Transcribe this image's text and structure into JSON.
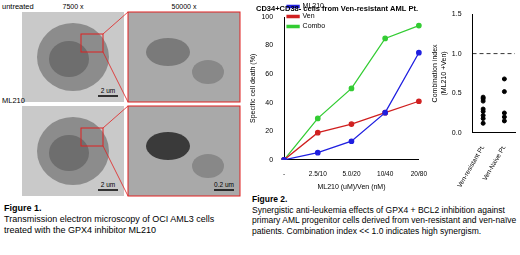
{
  "figure1": {
    "rows": [
      {
        "label": "untreated",
        "panels": [
          {
            "magnification": "7500 x",
            "scale_bar": "2 um"
          },
          {
            "magnification": "50000 x"
          }
        ]
      },
      {
        "label": "ML210",
        "panels": [
          {
            "scale_bar": "2 um"
          },
          {
            "scale_bar": "0.2 um"
          }
        ]
      }
    ],
    "caption": {
      "title": "Figure 1.",
      "text": "Transmission electron microscopy of OCI AML3 cells treated with the GPX4 inhibitor ML210"
    }
  },
  "chart_data": [
    {
      "type": "line",
      "title": "CD34+CD38- cells from Ven-resistant AML Pt.",
      "x_label": "ML210 (uM)/Ven (nM)",
      "y_label": "Specific cell death (%)",
      "categories": [
        "-",
        "2.5/10",
        "5.0/20",
        "10/40",
        "20/80"
      ],
      "series": [
        {
          "name": "ML210",
          "color": "#1f1fe0",
          "marker": "circle",
          "line_style": "solid",
          "values": [
            0,
            5,
            13,
            33,
            75
          ]
        },
        {
          "name": "Ven",
          "color": "#d02020",
          "marker": "circle",
          "line_style": "solid",
          "values": [
            0,
            19,
            25,
            33,
            41
          ]
        },
        {
          "name": "Combo",
          "color": "#33cc33",
          "marker": "circle",
          "line_style": "solid",
          "values": [
            0,
            29,
            50,
            85,
            94
          ]
        }
      ],
      "ylim": [
        0,
        100
      ],
      "yticks": [
        0,
        20,
        40,
        60,
        80,
        100
      ],
      "grid": false,
      "legend": "upper left"
    },
    {
      "type": "scatter",
      "y_label": [
        "Combination index",
        "(ML210 +Ven)"
      ],
      "categories": [
        "Ven-resistant Pt.",
        "Ven-Naive Pt."
      ],
      "values": [
        [
          0.45,
          0.43,
          0.4,
          0.3,
          0.27,
          0.22,
          0.18,
          0.12
        ],
        [
          0.68,
          0.52,
          0.25,
          0.2,
          0.15
        ]
      ],
      "color": "#000000",
      "marker": "circle",
      "ylim": [
        0,
        1.5
      ],
      "yticks": [
        {
          "value": 0,
          "label": "0.0"
        },
        {
          "value": 0.5,
          "label": "0.5"
        },
        {
          "value": 1,
          "label": "1.0"
        },
        {
          "value": 1.5,
          "label": "1.5"
        }
      ],
      "reference_line": {
        "value": 1,
        "line_style": "dashed"
      },
      "grid": false
    }
  ],
  "figure2_caption": {
    "title": "Figure 2.",
    "text": "Synergistic anti-leukemia effects of GPX4 + BCL2 inhibition against primary AML progenitor cells derived from ven-resistant and ven-naïve patients. Combination index << 1.0 indicates high synergism."
  }
}
